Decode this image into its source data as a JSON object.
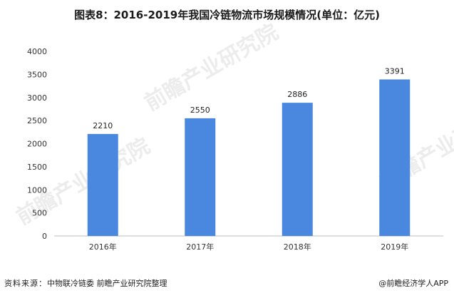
{
  "title": "图表8：2016-2019年我国冷链物流市场规模情况(单位：亿元)",
  "chart_data": {
    "type": "bar",
    "categories": [
      "2016年",
      "2017年",
      "2018年",
      "2019年"
    ],
    "values": [
      2210,
      2550,
      2886,
      3391
    ],
    "data_labels": [
      "2210",
      "2550",
      "2886",
      "3391"
    ],
    "ylim": [
      0,
      4000
    ],
    "yticks": [
      0,
      500,
      1000,
      1500,
      2000,
      2500,
      3000,
      3500,
      4000
    ],
    "bar_color": "#4A88E0",
    "grid": false,
    "legend": "none",
    "xlabel": "",
    "ylabel": ""
  },
  "footer": {
    "source_label": "资料来源：",
    "source_text": "中物联冷链委 前瞻产业研究院整理",
    "app_mark": "@前瞻经济学人APP"
  },
  "watermarks": [
    "前瞻产业研究院",
    "前瞻产业研究院",
    "前瞻产业研究院"
  ]
}
